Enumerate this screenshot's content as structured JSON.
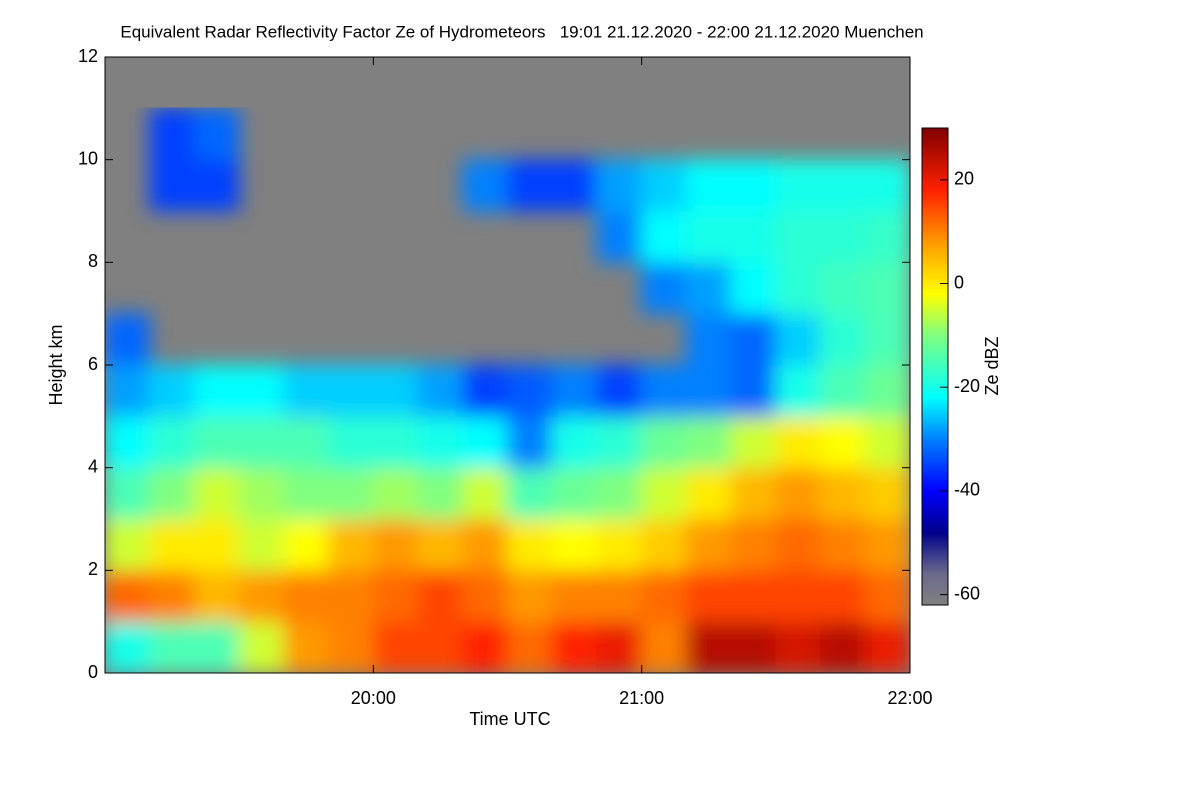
{
  "chart_data": {
    "type": "heatmap",
    "title": "Equivalent Radar Reflectivity Factor Ze of Hydrometeors   19:01 21.12.2020 - 22:00 21.12.2020 Muenchen",
    "x_label": "Time UTC",
    "y_label": "Height km",
    "colorbar_label": "Ze dBZ",
    "x": [
      19.083,
      19.25,
      19.417,
      19.583,
      19.75,
      19.917,
      20.083,
      20.25,
      20.417,
      20.583,
      20.75,
      20.917,
      21.083,
      21.25,
      21.417,
      21.583,
      21.75,
      21.917
    ],
    "y": [
      0.5,
      1.5,
      2.5,
      3.5,
      4.5,
      5.5,
      6.5,
      7.5,
      8.5,
      9.5,
      10.5,
      11.5
    ],
    "z": [
      [
        -20,
        -15,
        -15,
        -5,
        8,
        10,
        15,
        15,
        18,
        12,
        18,
        20,
        10,
        25,
        25,
        22,
        25,
        20
      ],
      [
        12,
        10,
        5,
        8,
        10,
        10,
        12,
        15,
        12,
        8,
        10,
        10,
        12,
        15,
        15,
        15,
        15,
        12
      ],
      [
        -5,
        0,
        0,
        -5,
        -2,
        5,
        8,
        5,
        8,
        0,
        -2,
        0,
        3,
        8,
        10,
        12,
        10,
        8
      ],
      [
        -15,
        -10,
        -5,
        -8,
        -10,
        -10,
        -8,
        -10,
        -5,
        -15,
        -12,
        -10,
        -5,
        0,
        5,
        8,
        5,
        3
      ],
      [
        -22,
        -18,
        -15,
        -15,
        -15,
        -18,
        -18,
        -20,
        -22,
        -30,
        -20,
        -18,
        -12,
        -10,
        -5,
        0,
        -2,
        -5
      ],
      [
        -28,
        -25,
        -22,
        -22,
        -25,
        -25,
        -25,
        -28,
        -35,
        -33,
        -30,
        -35,
        -30,
        -30,
        -32,
        -20,
        -15,
        -12
      ],
      [
        -32,
        null,
        null,
        null,
        null,
        null,
        null,
        null,
        null,
        null,
        null,
        null,
        null,
        -30,
        -32,
        -25,
        -18,
        -15
      ],
      [
        null,
        null,
        null,
        null,
        null,
        null,
        null,
        null,
        null,
        null,
        null,
        null,
        -30,
        -28,
        -22,
        -18,
        -16,
        -15
      ],
      [
        null,
        null,
        null,
        null,
        null,
        null,
        null,
        null,
        null,
        null,
        null,
        -30,
        -22,
        -20,
        -20,
        -18,
        -18,
        -17
      ],
      [
        null,
        -35,
        -35,
        null,
        null,
        null,
        null,
        null,
        -30,
        -35,
        -35,
        -28,
        -25,
        -22,
        -22,
        -20,
        -20,
        -20
      ],
      [
        null,
        -35,
        -32,
        null,
        null,
        null,
        null,
        null,
        null,
        null,
        null,
        null,
        null,
        null,
        null,
        null,
        null,
        null
      ],
      [
        null,
        null,
        null,
        null,
        null,
        null,
        null,
        null,
        null,
        null,
        null,
        null,
        null,
        null,
        null,
        null,
        null,
        null
      ]
    ],
    "xlim": [
      19,
      22
    ],
    "xticks": [
      {
        "value": 20,
        "label": "20:00"
      },
      {
        "value": 21,
        "label": "21:00"
      },
      {
        "value": 22,
        "label": "22:00"
      }
    ],
    "ylim": [
      0,
      12
    ],
    "yticks": [
      0,
      2,
      4,
      6,
      8,
      10,
      12
    ],
    "zlim": [
      -62,
      30
    ],
    "zticks": [
      -60,
      -40,
      -20,
      0,
      20
    ],
    "missing_color": "#808080",
    "colormap": [
      {
        "value": -62,
        "color": "#808080"
      },
      {
        "value": -56,
        "color": "#6a6a8c"
      },
      {
        "value": -48,
        "color": "#00008b"
      },
      {
        "value": -40,
        "color": "#0000ff"
      },
      {
        "value": -30,
        "color": "#0080ff"
      },
      {
        "value": -22,
        "color": "#00ffff"
      },
      {
        "value": -10,
        "color": "#80ff80"
      },
      {
        "value": -2,
        "color": "#ffff00"
      },
      {
        "value": 8,
        "color": "#ff9900"
      },
      {
        "value": 18,
        "color": "#ff2000"
      },
      {
        "value": 30,
        "color": "#800000"
      }
    ]
  }
}
